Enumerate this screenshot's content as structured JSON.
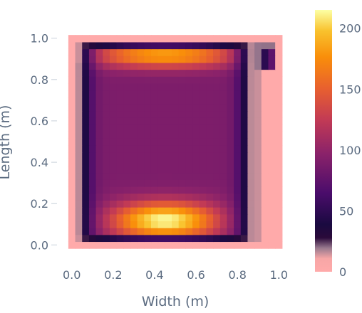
{
  "chart_data": {
    "type": "heatmap",
    "title": "",
    "xlabel": "Width (m)",
    "ylabel": "Length (m)",
    "x_range": [
      -0.03,
      1.03
    ],
    "y_range": [
      -0.03,
      1.03
    ],
    "x_ticks": [
      0.0,
      0.2,
      0.4,
      0.6,
      0.8,
      1.0
    ],
    "x_tick_labels": [
      "0.0",
      "0.2",
      "0.4",
      "0.6",
      "0.8",
      "1.0"
    ],
    "y_ticks": [
      0.0,
      0.2,
      0.4,
      0.6,
      0.8,
      1.0
    ],
    "y_tick_labels": [
      "0.0",
      "0.2",
      "0.4",
      "0.6",
      "0.8",
      "1.0"
    ],
    "grid": false,
    "grid_resolution": [
      31,
      31
    ],
    "cell_size_m": [
      0.0333,
      0.0333
    ],
    "field": {
      "description_values": "z values (0-215) over a 1.0 x 1.0 m domain; edge cells are 0, the central region is ~80-120, maxima near the bottom and top interior edges",
      "max_bottom": 215,
      "max_top": 185,
      "center_value": 90,
      "left_right_band_value": 15
    },
    "colorbar": {
      "range": [
        0,
        215
      ],
      "ticks": [
        0,
        50,
        100,
        150,
        200
      ],
      "tick_labels": [
        "0",
        "50",
        "100",
        "150",
        "200"
      ],
      "colorscale": [
        [
          0.0,
          "#ffaaaa"
        ],
        [
          0.05,
          "#f7a6a6"
        ],
        [
          0.09,
          "#9a7a8f"
        ],
        [
          0.13,
          "#2a0a3a"
        ],
        [
          0.18,
          "#1a0a40"
        ],
        [
          0.3,
          "#4a0c6b"
        ],
        [
          0.45,
          "#8a226a"
        ],
        [
          0.58,
          "#c23a55"
        ],
        [
          0.7,
          "#e8602f"
        ],
        [
          0.82,
          "#f98e0a"
        ],
        [
          0.92,
          "#f9c22d"
        ],
        [
          1.0,
          "#fcffa4"
        ]
      ]
    }
  }
}
